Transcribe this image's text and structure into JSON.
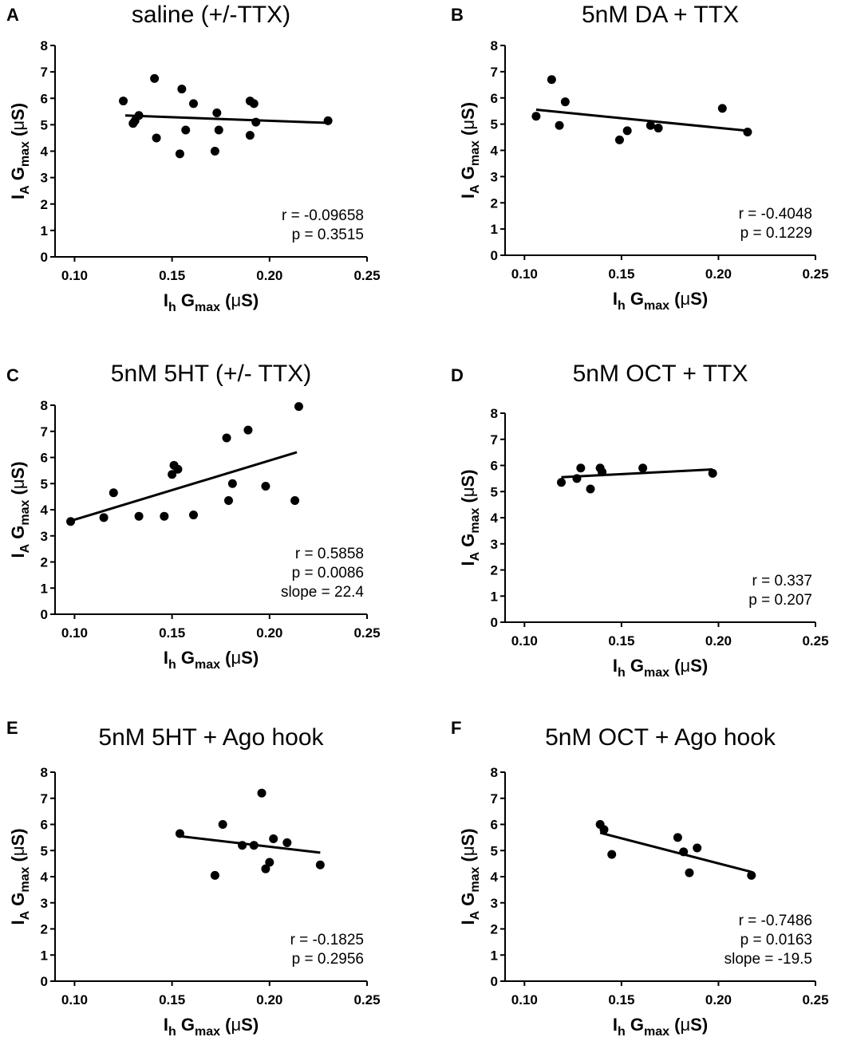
{
  "chart_data": [
    {
      "type": "scatter",
      "panel_label": "A",
      "title": "saline (+/-TTX)",
      "xlabel": {
        "main": "I",
        "sub": "h",
        "rest": " G",
        "rest_sub": "max",
        "unit_open": " (",
        "unit_mu": "μ",
        "unit_close": "S)"
      },
      "ylabel": {
        "main": "I",
        "sub": "A",
        "rest": " G",
        "rest_sub": "max",
        "unit_open": " (",
        "unit_mu": "μ",
        "unit_close": "S)"
      },
      "xlim": [
        0.09,
        0.25
      ],
      "ylim": [
        0,
        8
      ],
      "xticks": [
        "0.10",
        "0.15",
        "0.20",
        "0.25"
      ],
      "xtick_values": [
        0.1,
        0.15,
        0.2,
        0.25
      ],
      "yticks": [
        "0",
        "1",
        "2",
        "3",
        "4",
        "5",
        "6",
        "7",
        "8"
      ],
      "points": [
        [
          0.125,
          5.9
        ],
        [
          0.13,
          5.05
        ],
        [
          0.131,
          5.15
        ],
        [
          0.133,
          5.35
        ],
        [
          0.141,
          6.75
        ],
        [
          0.142,
          4.5
        ],
        [
          0.154,
          3.9
        ],
        [
          0.155,
          6.35
        ],
        [
          0.157,
          4.8
        ],
        [
          0.161,
          5.8
        ],
        [
          0.172,
          4.0
        ],
        [
          0.173,
          5.45
        ],
        [
          0.174,
          4.8
        ],
        [
          0.19,
          4.6
        ],
        [
          0.19,
          5.9
        ],
        [
          0.192,
          5.8
        ],
        [
          0.193,
          5.1
        ],
        [
          0.23,
          5.15
        ]
      ],
      "fit_line": [
        [
          0.126,
          5.35
        ],
        [
          0.23,
          5.07
        ]
      ],
      "stats": [
        "r = -0.09658",
        "p = 0.3515"
      ]
    },
    {
      "type": "scatter",
      "panel_label": "B",
      "title": "5nM DA + TTX",
      "xlabel": {
        "main": "I",
        "sub": "h",
        "rest": " G",
        "rest_sub": "max",
        "unit_open": " (",
        "unit_mu": "μ",
        "unit_close": "S)"
      },
      "ylabel": {
        "main": "I",
        "sub": "A",
        "rest": " G",
        "rest_sub": "max",
        "unit_open": " (",
        "unit_mu": "μ",
        "unit_close": "S)"
      },
      "xlim": [
        0.09,
        0.25
      ],
      "ylim": [
        0,
        8
      ],
      "xticks": [
        "0.10",
        "0.15",
        "0.20",
        "0.25"
      ],
      "xtick_values": [
        0.1,
        0.15,
        0.2,
        0.25
      ],
      "yticks": [
        "0",
        "1",
        "2",
        "3",
        "4",
        "5",
        "6",
        "7",
        "8"
      ],
      "points": [
        [
          0.106,
          5.3
        ],
        [
          0.114,
          6.7
        ],
        [
          0.118,
          4.95
        ],
        [
          0.121,
          5.85
        ],
        [
          0.149,
          4.4
        ],
        [
          0.153,
          4.75
        ],
        [
          0.165,
          4.95
        ],
        [
          0.169,
          4.85
        ],
        [
          0.202,
          5.6
        ],
        [
          0.215,
          4.7
        ]
      ],
      "fit_line": [
        [
          0.106,
          5.55
        ],
        [
          0.215,
          4.75
        ]
      ],
      "stats": [
        "r = -0.4048",
        "p = 0.1229"
      ]
    },
    {
      "type": "scatter",
      "panel_label": "C",
      "title": "5nM 5HT (+/- TTX)",
      "xlabel": {
        "main": "I",
        "sub": "h",
        "rest": " G",
        "rest_sub": "max",
        "unit_open": " (",
        "unit_mu": "μ",
        "unit_close": "S)"
      },
      "ylabel": {
        "main": "I",
        "sub": "A",
        "rest": " G",
        "rest_sub": "max",
        "unit_open": " (",
        "unit_mu": "μ",
        "unit_close": "S)"
      },
      "xlim": [
        0.09,
        0.25
      ],
      "ylim": [
        0,
        8
      ],
      "xticks": [
        "0.10",
        "0.15",
        "0.20",
        "0.25"
      ],
      "xtick_values": [
        0.1,
        0.15,
        0.2,
        0.25
      ],
      "yticks": [
        "0",
        "1",
        "2",
        "3",
        "4",
        "5",
        "6",
        "7",
        "8"
      ],
      "points": [
        [
          0.098,
          3.55
        ],
        [
          0.115,
          3.7
        ],
        [
          0.12,
          4.65
        ],
        [
          0.133,
          3.75
        ],
        [
          0.146,
          3.75
        ],
        [
          0.15,
          5.35
        ],
        [
          0.151,
          5.7
        ],
        [
          0.153,
          5.55
        ],
        [
          0.161,
          3.8
        ],
        [
          0.178,
          6.75
        ],
        [
          0.179,
          4.35
        ],
        [
          0.181,
          5.0
        ],
        [
          0.189,
          7.05
        ],
        [
          0.198,
          4.9
        ],
        [
          0.213,
          4.35
        ],
        [
          0.215,
          7.95
        ]
      ],
      "fit_line": [
        [
          0.097,
          3.55
        ],
        [
          0.214,
          6.2
        ]
      ],
      "stats": [
        "r = 0.5858",
        "p = 0.0086",
        "slope = 22.4"
      ]
    },
    {
      "type": "scatter",
      "panel_label": "D",
      "title": "5nM OCT + TTX",
      "xlabel": {
        "main": "I",
        "sub": "h",
        "rest": " G",
        "rest_sub": "max",
        "unit_open": " (",
        "unit_mu": "μ",
        "unit_close": "S)"
      },
      "ylabel": {
        "main": "I",
        "sub": "A",
        "rest": " G",
        "rest_sub": "max",
        "unit_open": " (",
        "unit_mu": "μ",
        "unit_close": "S)"
      },
      "xlim": [
        0.09,
        0.25
      ],
      "ylim": [
        0,
        8
      ],
      "xticks": [
        "0.10",
        "0.15",
        "0.20",
        "0.25"
      ],
      "xtick_values": [
        0.1,
        0.15,
        0.2,
        0.25
      ],
      "yticks": [
        "0",
        "1",
        "2",
        "3",
        "4",
        "5",
        "6",
        "7",
        "8"
      ],
      "points": [
        [
          0.119,
          5.35
        ],
        [
          0.127,
          5.5
        ],
        [
          0.129,
          5.9
        ],
        [
          0.134,
          5.1
        ],
        [
          0.139,
          5.9
        ],
        [
          0.14,
          5.75
        ],
        [
          0.161,
          5.9
        ],
        [
          0.197,
          5.7
        ]
      ],
      "fit_line": [
        [
          0.119,
          5.55
        ],
        [
          0.197,
          5.85
        ]
      ],
      "stats": [
        "r = 0.337",
        "p = 0.207"
      ]
    },
    {
      "type": "scatter",
      "panel_label": "E",
      "title": "5nM 5HT + Ago hook",
      "xlabel": {
        "main": "I",
        "sub": "h",
        "rest": " G",
        "rest_sub": "max",
        "unit_open": " (",
        "unit_mu": "μ",
        "unit_close": "S)"
      },
      "ylabel": {
        "main": "I",
        "sub": "A",
        "rest": " G",
        "rest_sub": "max",
        "unit_open": " (",
        "unit_mu": "μ",
        "unit_close": "S)"
      },
      "xlim": [
        0.09,
        0.25
      ],
      "ylim": [
        0,
        8
      ],
      "xticks": [
        "0.10",
        "0.15",
        "0.20",
        "0.25"
      ],
      "xtick_values": [
        0.1,
        0.15,
        0.2,
        0.25
      ],
      "yticks": [
        "0",
        "1",
        "2",
        "3",
        "4",
        "5",
        "6",
        "7",
        "8"
      ],
      "points": [
        [
          0.154,
          5.65
        ],
        [
          0.172,
          4.05
        ],
        [
          0.176,
          6.0
        ],
        [
          0.186,
          5.2
        ],
        [
          0.192,
          5.2
        ],
        [
          0.196,
          7.2
        ],
        [
          0.198,
          4.3
        ],
        [
          0.2,
          4.55
        ],
        [
          0.202,
          5.45
        ],
        [
          0.209,
          5.3
        ],
        [
          0.226,
          4.45
        ]
      ],
      "fit_line": [
        [
          0.154,
          5.55
        ],
        [
          0.226,
          4.92
        ]
      ],
      "stats": [
        "r = -0.1825",
        "p = 0.2956"
      ]
    },
    {
      "type": "scatter",
      "panel_label": "F",
      "title": "5nM OCT + Ago hook",
      "xlabel": {
        "main": "I",
        "sub": "h",
        "rest": " G",
        "rest_sub": "max",
        "unit_open": " (",
        "unit_mu": "μ",
        "unit_close": "S)"
      },
      "ylabel": {
        "main": "I",
        "sub": "A",
        "rest": " G",
        "rest_sub": "max",
        "unit_open": " (",
        "unit_mu": "μ",
        "unit_close": "S)"
      },
      "xlim": [
        0.09,
        0.25
      ],
      "ylim": [
        0,
        8
      ],
      "xticks": [
        "0.10",
        "0.15",
        "0.20",
        "0.25"
      ],
      "xtick_values": [
        0.1,
        0.15,
        0.2,
        0.25
      ],
      "yticks": [
        "0",
        "1",
        "2",
        "3",
        "4",
        "5",
        "6",
        "7",
        "8"
      ],
      "points": [
        [
          0.139,
          6.0
        ],
        [
          0.141,
          5.8
        ],
        [
          0.145,
          4.85
        ],
        [
          0.179,
          5.5
        ],
        [
          0.182,
          4.95
        ],
        [
          0.185,
          4.15
        ],
        [
          0.189,
          5.1
        ],
        [
          0.217,
          4.05
        ]
      ],
      "fit_line": [
        [
          0.139,
          5.68
        ],
        [
          0.217,
          4.18
        ]
      ],
      "stats": [
        "r = -0.7486",
        "p = 0.0163",
        "slope = -19.5"
      ]
    }
  ],
  "colors": {
    "ink": "#000000",
    "background": "#ffffff"
  }
}
